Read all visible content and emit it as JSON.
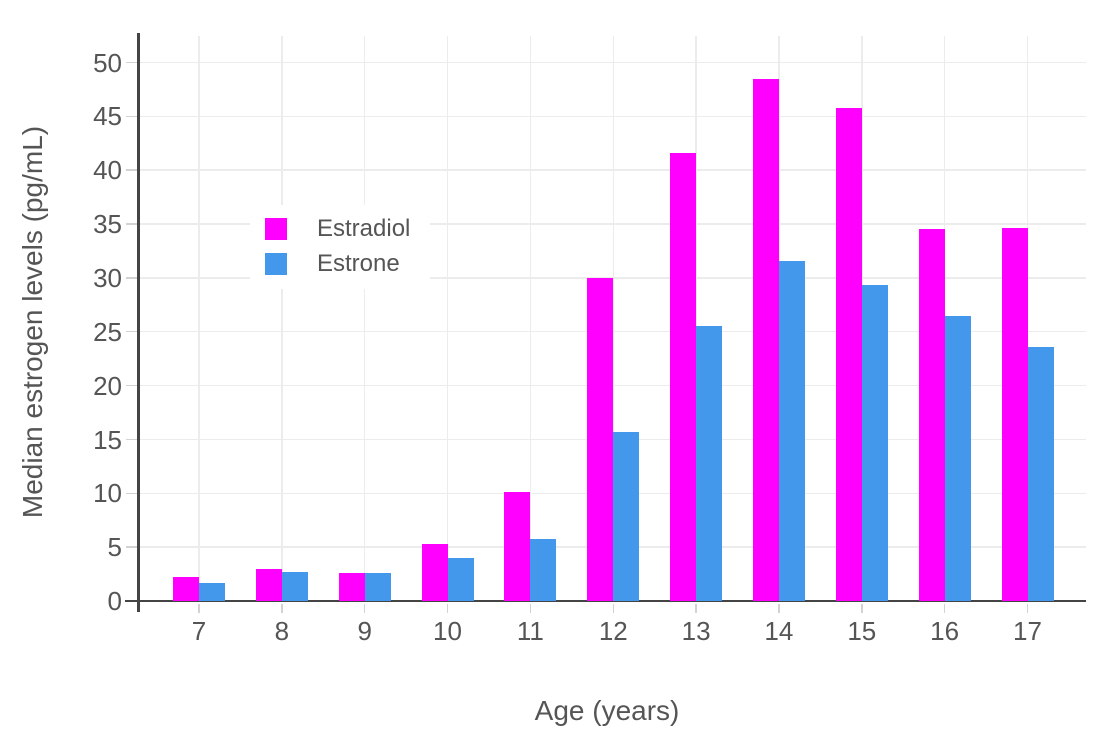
{
  "chart_data": {
    "type": "bar",
    "title": "",
    "xlabel": "Age (years)",
    "ylabel": "Median estrogen levels (pg/mL)",
    "categories": [
      "7",
      "8",
      "9",
      "10",
      "11",
      "12",
      "13",
      "14",
      "15",
      "16",
      "17"
    ],
    "series": [
      {
        "name": "Estradiol",
        "color": "#FF00FF",
        "values": [
          2.2,
          3.0,
          2.6,
          5.3,
          10.1,
          30.0,
          41.6,
          48.5,
          45.8,
          34.5,
          34.6
        ]
      },
      {
        "name": "Estrone",
        "color": "#4398EC",
        "values": [
          1.7,
          2.7,
          2.6,
          4.0,
          5.8,
          15.7,
          25.5,
          31.6,
          29.3,
          26.5,
          23.6
        ]
      }
    ],
    "ylim": [
      0,
      50
    ],
    "ytick_step": 5,
    "grid": true,
    "legend_position": "inside-top-left",
    "background": "#FFFFFF",
    "colors": {
      "grid": "#ECECEC",
      "axis_line": "#444444",
      "tick_mark": "#D2D2D2",
      "text": "#555555"
    }
  }
}
